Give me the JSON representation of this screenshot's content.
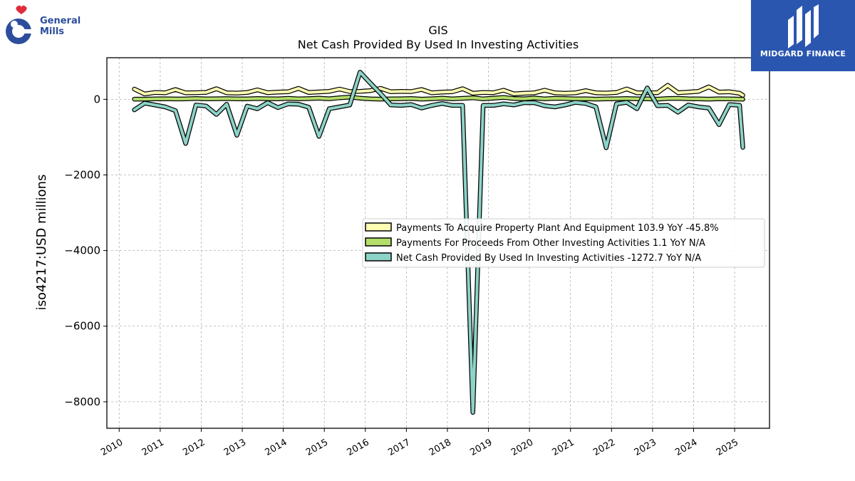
{
  "branding": {
    "company_logo_text": "General Mills",
    "company_logo_line1": "General",
    "company_logo_line2": "Mills",
    "watermark_text": "MIDGARD FINANCE",
    "company_color": "#2d4e9c",
    "watermark_bg": "#2a56b0"
  },
  "chart_data": {
    "type": "line",
    "title": "GIS",
    "subtitle": "Net Cash Provided By Used In Investing Activities",
    "ylabel": "iso4217:USD  millions",
    "xlabel": "",
    "xlim": [
      2009.7,
      2025.85
    ],
    "ylim": [
      -8700,
      1100
    ],
    "yticks": [
      0,
      -2000,
      -4000,
      -6000,
      -8000
    ],
    "ytick_labels": [
      "0",
      "−2000",
      "−4000",
      "−6000",
      "−8000"
    ],
    "xticks": [
      2010,
      2011,
      2012,
      2013,
      2014,
      2015,
      2016,
      2017,
      2018,
      2019,
      2020,
      2021,
      2022,
      2023,
      2024,
      2025
    ],
    "xtick_labels": [
      "2010",
      "2011",
      "2012",
      "2013",
      "2014",
      "2015",
      "2016",
      "2017",
      "2018",
      "2019",
      "2020",
      "2021",
      "2022",
      "2023",
      "2024",
      "2025"
    ],
    "grid": true,
    "legend_position": "center-right",
    "x": [
      2010.37,
      2010.62,
      2010.87,
      2011.12,
      2011.37,
      2011.62,
      2011.87,
      2012.12,
      2012.37,
      2012.62,
      2012.87,
      2013.12,
      2013.37,
      2013.62,
      2013.87,
      2014.12,
      2014.37,
      2014.62,
      2014.87,
      2015.12,
      2015.37,
      2015.62,
      2015.87,
      2016.12,
      2016.37,
      2016.62,
      2016.87,
      2017.12,
      2017.37,
      2017.62,
      2017.87,
      2018.12,
      2018.37,
      2018.62,
      2018.87,
      2019.12,
      2019.37,
      2019.62,
      2019.87,
      2020.12,
      2020.37,
      2020.62,
      2020.87,
      2021.12,
      2021.37,
      2021.62,
      2021.87,
      2022.12,
      2022.37,
      2022.62,
      2022.87,
      2023.12,
      2023.37,
      2023.62,
      2023.87,
      2024.12,
      2024.37,
      2024.62,
      2024.87,
      2025.12,
      2025.2
    ],
    "series": [
      {
        "name": "Payments To Acquire Property Plant And Equipment",
        "legend_label": "Payments To Acquire Property Plant And Equipment  103.9 YoY -45.8%",
        "color": "#ffffb3",
        "values": [
          270,
          140,
          180,
          170,
          260,
          170,
          175,
          185,
          280,
          170,
          165,
          180,
          250,
          175,
          190,
          200,
          290,
          180,
          195,
          210,
          270,
          205,
          210,
          230,
          290,
          200,
          210,
          205,
          260,
          170,
          190,
          200,
          280,
          160,
          180,
          175,
          240,
          145,
          160,
          170,
          240,
          170,
          160,
          170,
          230,
          170,
          165,
          180,
          275,
          170,
          175,
          175,
          370,
          175,
          190,
          210,
          330,
          190,
          200,
          160,
          104
        ]
      },
      {
        "name": "Payments For Proceeds From Other Investing Activities",
        "legend_label": "Payments For Proceeds From Other Investing Activities  1.1 YoY N/A",
        "color": "#b3de69",
        "values": [
          5,
          5,
          10,
          15,
          8,
          10,
          20,
          12,
          15,
          18,
          10,
          12,
          20,
          15,
          10,
          25,
          12,
          18,
          30,
          15,
          40,
          60,
          30,
          10,
          5,
          10,
          15,
          20,
          5,
          15,
          30,
          10,
          25,
          40,
          10,
          30,
          50,
          20,
          15,
          35,
          10,
          25,
          20,
          10,
          15,
          5,
          10,
          15,
          20,
          12,
          10,
          5,
          20,
          25,
          15,
          10,
          5,
          15,
          10,
          5,
          1
        ]
      },
      {
        "name": "Net Cash Provided By Used In Investing Activities",
        "legend_label": "Net Cash Provided By Used In Investing Activities  -1272.7 YoY N/A",
        "color": "#8dd3c7",
        "values": [
          -280,
          -100,
          -150,
          -200,
          -300,
          -1170,
          -150,
          -180,
          -400,
          -130,
          -950,
          -180,
          -250,
          -90,
          -220,
          -120,
          -130,
          -210,
          -980,
          -250,
          -200,
          -150,
          720,
          430,
          150,
          -150,
          -160,
          -140,
          -230,
          -160,
          -110,
          -160,
          -160,
          -8280,
          -160,
          -160,
          -120,
          -150,
          -90,
          -90,
          -170,
          -200,
          -150,
          -80,
          -110,
          -200,
          -1280,
          -120,
          -80,
          -250,
          300,
          -170,
          -160,
          -340,
          -150,
          -200,
          -230,
          -670,
          -140,
          -160,
          -1270
        ]
      }
    ]
  }
}
